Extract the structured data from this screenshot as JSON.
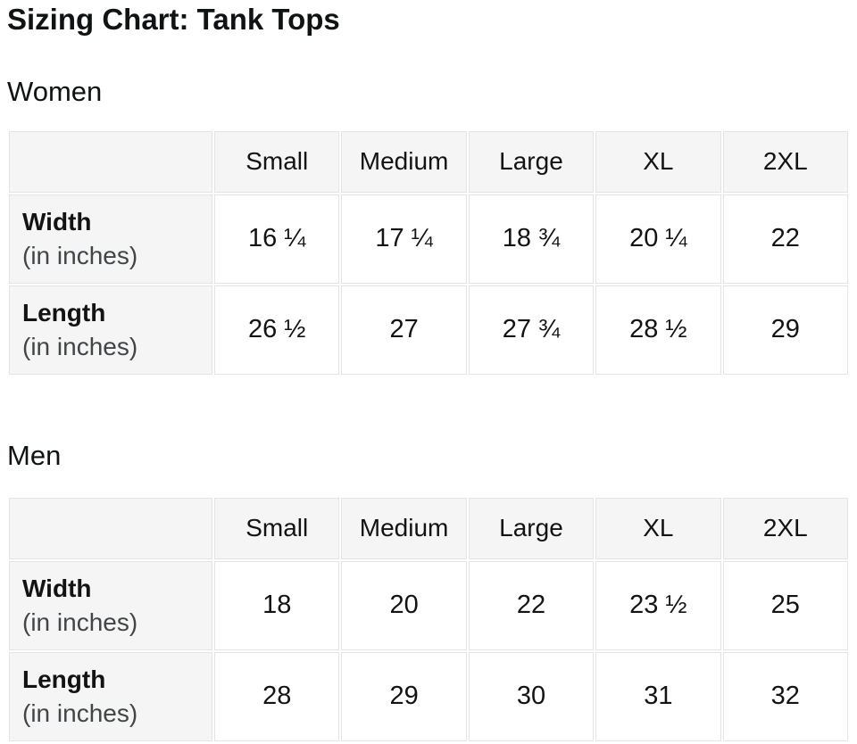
{
  "page": {
    "title": "Sizing Chart: Tank Tops"
  },
  "colors": {
    "background": "#ffffff",
    "header_cell_bg": "#f5f5f6",
    "cell_border": "#e3e5e5",
    "text_primary": "#131313",
    "text_secondary": "#424548"
  },
  "tables": [
    {
      "section": "Women",
      "columns": [
        "Small",
        "Medium",
        "Large",
        "XL",
        "2XL"
      ],
      "rows": [
        {
          "label": "Width",
          "sublabel": "(in inches)",
          "values": [
            "16 ¼",
            "17 ¼",
            "18 ¾",
            "20 ¼",
            "22"
          ]
        },
        {
          "label": "Length",
          "sublabel": "(in inches)",
          "values": [
            "26 ½",
            "27",
            "27 ¾",
            "28 ½",
            "29"
          ]
        }
      ]
    },
    {
      "section": "Men",
      "columns": [
        "Small",
        "Medium",
        "Large",
        "XL",
        "2XL"
      ],
      "rows": [
        {
          "label": "Width",
          "sublabel": "(in inches)",
          "values": [
            "18",
            "20",
            "22",
            "23 ½",
            "25"
          ]
        },
        {
          "label": "Length",
          "sublabel": "(in inches)",
          "values": [
            "28",
            "29",
            "30",
            "31",
            "32"
          ]
        }
      ]
    }
  ]
}
